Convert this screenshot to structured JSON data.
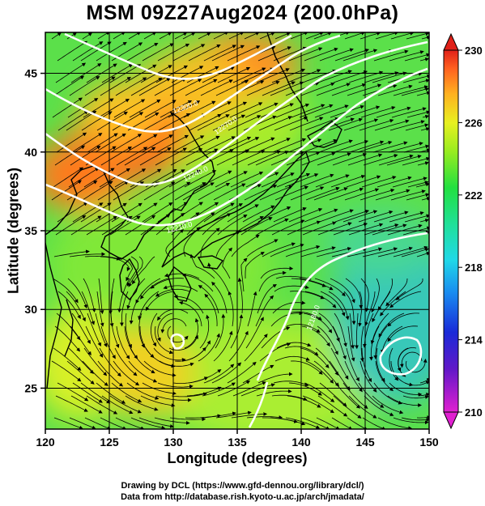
{
  "title": "MSM 09Z27Aug2024 (200.0hPa)",
  "xlabel": "Longitude (degrees)",
  "ylabel": "Latitude  (degrees)",
  "credits": {
    "line1": "Drawing by DCL (https://www.gfd-dennou.org/library/dcl/)",
    "line2": "Data from http://database.rish.kyoto-u.ac.jp/arch/jmadata/"
  },
  "map": {
    "xlim": [
      120,
      150
    ],
    "ylim": [
      22.4,
      47.6
    ],
    "x_ticks": [
      120,
      125,
      130,
      135,
      140,
      145,
      150
    ],
    "y_ticks": [
      25,
      30,
      35,
      40,
      45
    ],
    "grid": true,
    "contour_labels": [
      "12300.0",
      "12270.0",
      "12240.0",
      "12210.0",
      "12180.0"
    ],
    "typhoon_center": {
      "lon": 130.2,
      "lat": 28.5
    },
    "colorbar": {
      "min": 210,
      "max": 230,
      "ticks": [
        210,
        214,
        218,
        222,
        226,
        230
      ]
    },
    "colors": {
      "orange_high": "#ff7a1a",
      "green_mid": "#39e25a",
      "teal_low": "#2fd0a8",
      "land_outline": "#000000",
      "contour": "#ffffff"
    }
  }
}
